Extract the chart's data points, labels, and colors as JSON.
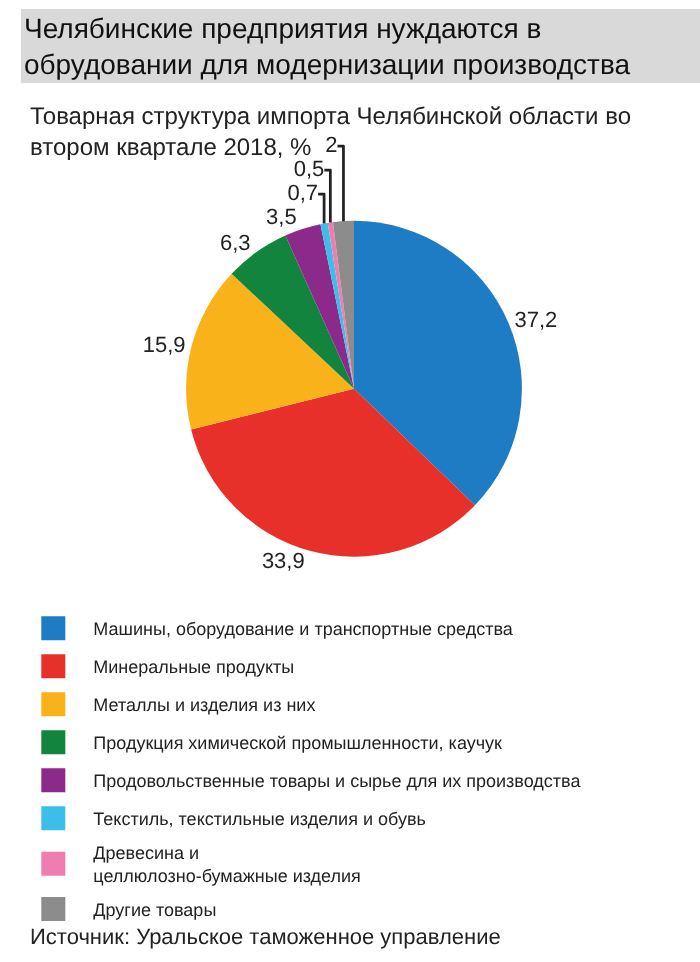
{
  "chart_data": {
    "type": "pie",
    "title": "Челябинские предприятия нуждаются в\nобрудовании для модернизации производства",
    "subtitle": "Товарная структура импорта Челябинской области во\nвтором квартале 2018, %",
    "categories": [
      "Машины, оборудование и транспортные средства",
      "Минеральные продукты",
      "Металлы и изделия из них",
      "Продукция химической промышленности, каучук",
      "Продовольственные товары и сырье для их производства",
      "Текстиль, текстильные изделия и обувь",
      "Древесина и\nцеллюлозно-бумажные изделия",
      "Другие товары"
    ],
    "values": [
      37.2,
      33.9,
      15.9,
      6.3,
      3.5,
      0.7,
      0.5,
      2
    ],
    "value_labels": [
      "37,2",
      "33,9",
      "15,9",
      "6,3",
      "3,5",
      "0,7",
      "0,5",
      "2"
    ],
    "colors": [
      "#1d7cc4",
      "#e8302a",
      "#f9b219",
      "#13843e",
      "#8b2a8a",
      "#3bbfe8",
      "#f07db0",
      "#8c8c8c"
    ],
    "legend": "bottom",
    "annotations": [
      "Источник: Уральское таможенное управление"
    ]
  }
}
